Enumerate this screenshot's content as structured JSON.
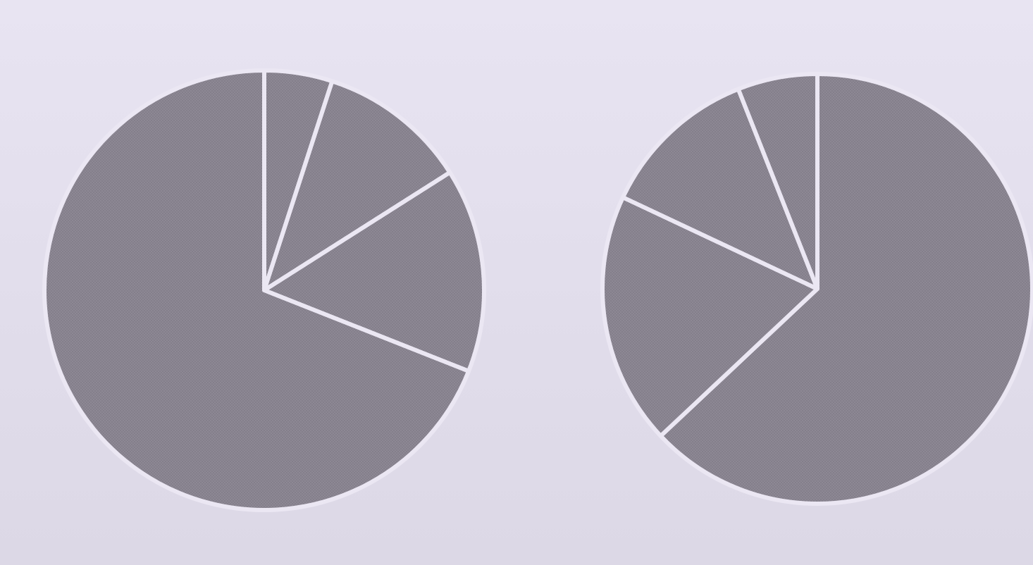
{
  "chart_data": [
    {
      "type": "pie",
      "values": [
        5,
        11,
        15,
        69
      ],
      "start_angle_deg": 0,
      "direction": "clockwise",
      "colors": [
        "#8d8894",
        "#8d8894",
        "#8d8894",
        "#8d8894"
      ]
    },
    {
      "type": "pie",
      "values": [
        63,
        19,
        12,
        6
      ],
      "start_angle_deg": 0,
      "direction": "clockwise",
      "colors": [
        "#8d8894",
        "#8d8894",
        "#8d8894",
        "#8d8894"
      ]
    }
  ],
  "colors": {
    "background": "#e4e0ee",
    "slice_fill": "#8d8894",
    "slice_separator": "#ebe7f3"
  }
}
